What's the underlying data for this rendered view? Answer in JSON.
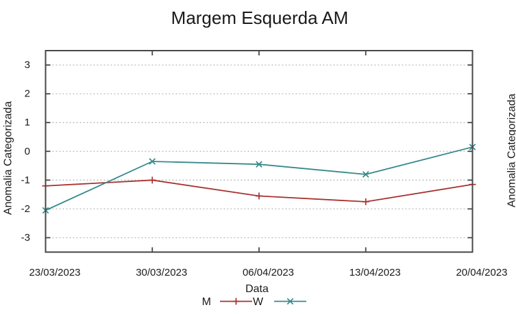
{
  "chart_data": {
    "type": "line",
    "title": "Margem Esquerda AM",
    "xlabel": "Data",
    "ylabel": "Anomalia Categorizada",
    "categories": [
      "23/03/2023",
      "30/03/2023",
      "06/04/2023",
      "13/04/2023",
      "20/04/2023"
    ],
    "series": [
      {
        "name": "M",
        "color": "#a93030",
        "marker": "plus",
        "values": [
          -1.2,
          -1.0,
          -1.55,
          -1.75,
          -1.15
        ]
      },
      {
        "name": "W",
        "color": "#35898a",
        "marker": "cross",
        "values": [
          -2.05,
          -0.35,
          -0.45,
          -0.8,
          0.15
        ]
      }
    ],
    "yticks": [
      3,
      2,
      1,
      0,
      -1,
      -2,
      -3
    ],
    "ylim": [
      -3.5,
      3.5
    ],
    "grid": "horizontal-dotted",
    "legend_position": "below-center-under-xlabel"
  },
  "adjacent_chart": {
    "ylabel_partial": "Anomalia Categorizada"
  },
  "colors": {
    "axis": "#464646",
    "grid": "#b3b3b3",
    "text": "#1a1a1a",
    "background": "#ffffff"
  }
}
